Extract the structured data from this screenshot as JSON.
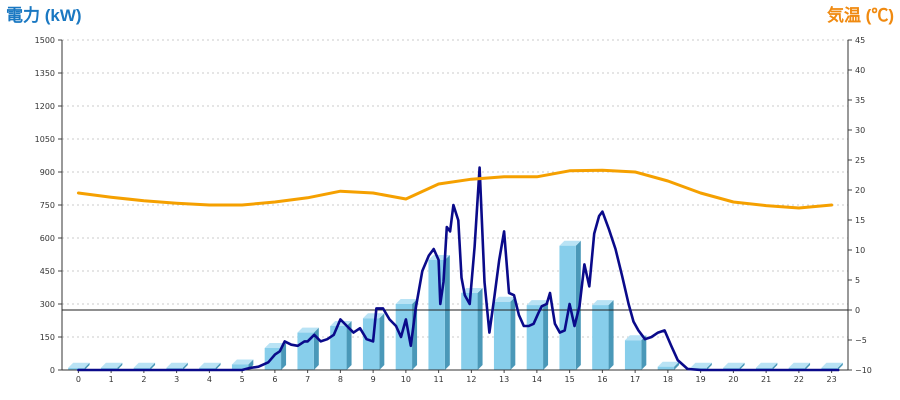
{
  "colors": {
    "bar_front": "#87ceeb",
    "bar_side": "#4a98b8",
    "bar_top": "#b9e3f5",
    "power_line": "#0a0a8a",
    "temp_line": "#f5a000",
    "left_title": "#1a78c2",
    "right_title": "#f08a10",
    "grid": "#bbbbbb"
  },
  "chart_data": {
    "type": "bar",
    "left_axis_title": "電力 (kW)",
    "right_axis_title": "気温 (℃)",
    "ylim_left": [
      0,
      1500
    ],
    "ylim_right": [
      -10,
      45
    ],
    "yticks_left": [
      "0",
      "150",
      "300",
      "450",
      "600",
      "750",
      "900",
      "1050",
      "1200",
      "1350",
      "1500"
    ],
    "yticks_right": [
      "−10",
      "−5",
      "0",
      "5",
      "10",
      "15",
      "20",
      "25",
      "30",
      "35",
      "40",
      "45"
    ],
    "grid": true,
    "categories": [
      "0",
      "1",
      "2",
      "3",
      "4",
      "5",
      "6",
      "7",
      "8",
      "9",
      "10",
      "11",
      "12",
      "13",
      "14",
      "15",
      "16",
      "17",
      "18",
      "19",
      "20",
      "21",
      "22",
      "23"
    ],
    "series": [
      {
        "kind": "bar",
        "axis": "left",
        "values": [
          10,
          10,
          10,
          10,
          10,
          25,
          100,
          170,
          200,
          235,
          300,
          500,
          350,
          310,
          295,
          565,
          295,
          135,
          15,
          10,
          10,
          10,
          10,
          10
        ]
      },
      {
        "kind": "line",
        "axis": "left",
        "x": [
          0,
          0.5,
          1,
          1.5,
          2,
          2.5,
          3,
          3.5,
          4,
          4.5,
          5,
          5.2,
          5.5,
          5.8,
          6,
          6.15,
          6.3,
          6.5,
          6.7,
          6.9,
          7,
          7.2,
          7.4,
          7.6,
          7.8,
          8,
          8.2,
          8.4,
          8.6,
          8.8,
          9,
          9.1,
          9.3,
          9.5,
          9.7,
          9.85,
          10,
          10.15,
          10.3,
          10.5,
          10.7,
          10.85,
          11,
          11.05,
          11.15,
          11.25,
          11.35,
          11.45,
          11.6,
          11.7,
          11.8,
          11.95,
          12.1,
          12.25,
          12.4,
          12.55,
          12.7,
          12.85,
          13,
          13.15,
          13.3,
          13.45,
          13.6,
          13.75,
          13.9,
          14.05,
          14.15,
          14.3,
          14.4,
          14.55,
          14.7,
          14.85,
          15,
          15.15,
          15.3,
          15.45,
          15.6,
          15.75,
          15.9,
          16,
          16.2,
          16.4,
          16.6,
          16.8,
          16.95,
          17.1,
          17.3,
          17.5,
          17.7,
          17.9,
          18.1,
          18.3,
          18.6,
          19,
          19.5,
          20,
          20.5,
          21,
          21.5,
          22,
          22.5,
          23,
          23.2
        ],
        "values": [
          0,
          0,
          0,
          0,
          0,
          0,
          0,
          0,
          0,
          0,
          0,
          8,
          15,
          35,
          70,
          85,
          130,
          115,
          110,
          130,
          130,
          160,
          130,
          140,
          160,
          230,
          200,
          170,
          190,
          140,
          130,
          280,
          280,
          230,
          200,
          150,
          230,
          110,
          280,
          450,
          520,
          550,
          500,
          300,
          400,
          650,
          630,
          750,
          680,
          420,
          340,
          300,
          560,
          920,
          400,
          170,
          330,
          500,
          630,
          350,
          340,
          250,
          200,
          200,
          210,
          260,
          290,
          300,
          350,
          210,
          170,
          180,
          300,
          200,
          290,
          480,
          380,
          620,
          700,
          720,
          640,
          550,
          430,
          300,
          220,
          180,
          140,
          150,
          170,
          180,
          110,
          45,
          5,
          0,
          0,
          0,
          0,
          0,
          0,
          0,
          0,
          0,
          0
        ]
      },
      {
        "kind": "line",
        "axis": "right",
        "x": [
          0,
          1,
          2,
          3,
          4,
          5,
          6,
          7,
          8,
          9,
          10,
          11,
          12,
          13,
          14,
          15,
          16,
          17,
          18,
          19,
          20,
          21,
          22,
          23
        ],
        "values": [
          19.5,
          18.8,
          18.2,
          17.8,
          17.5,
          17.5,
          18,
          18.7,
          19.8,
          19.5,
          18.5,
          21,
          21.8,
          22.2,
          22.2,
          23.2,
          23.3,
          23,
          21.5,
          19.5,
          18,
          17.4,
          17,
          17.5
        ]
      }
    ]
  }
}
